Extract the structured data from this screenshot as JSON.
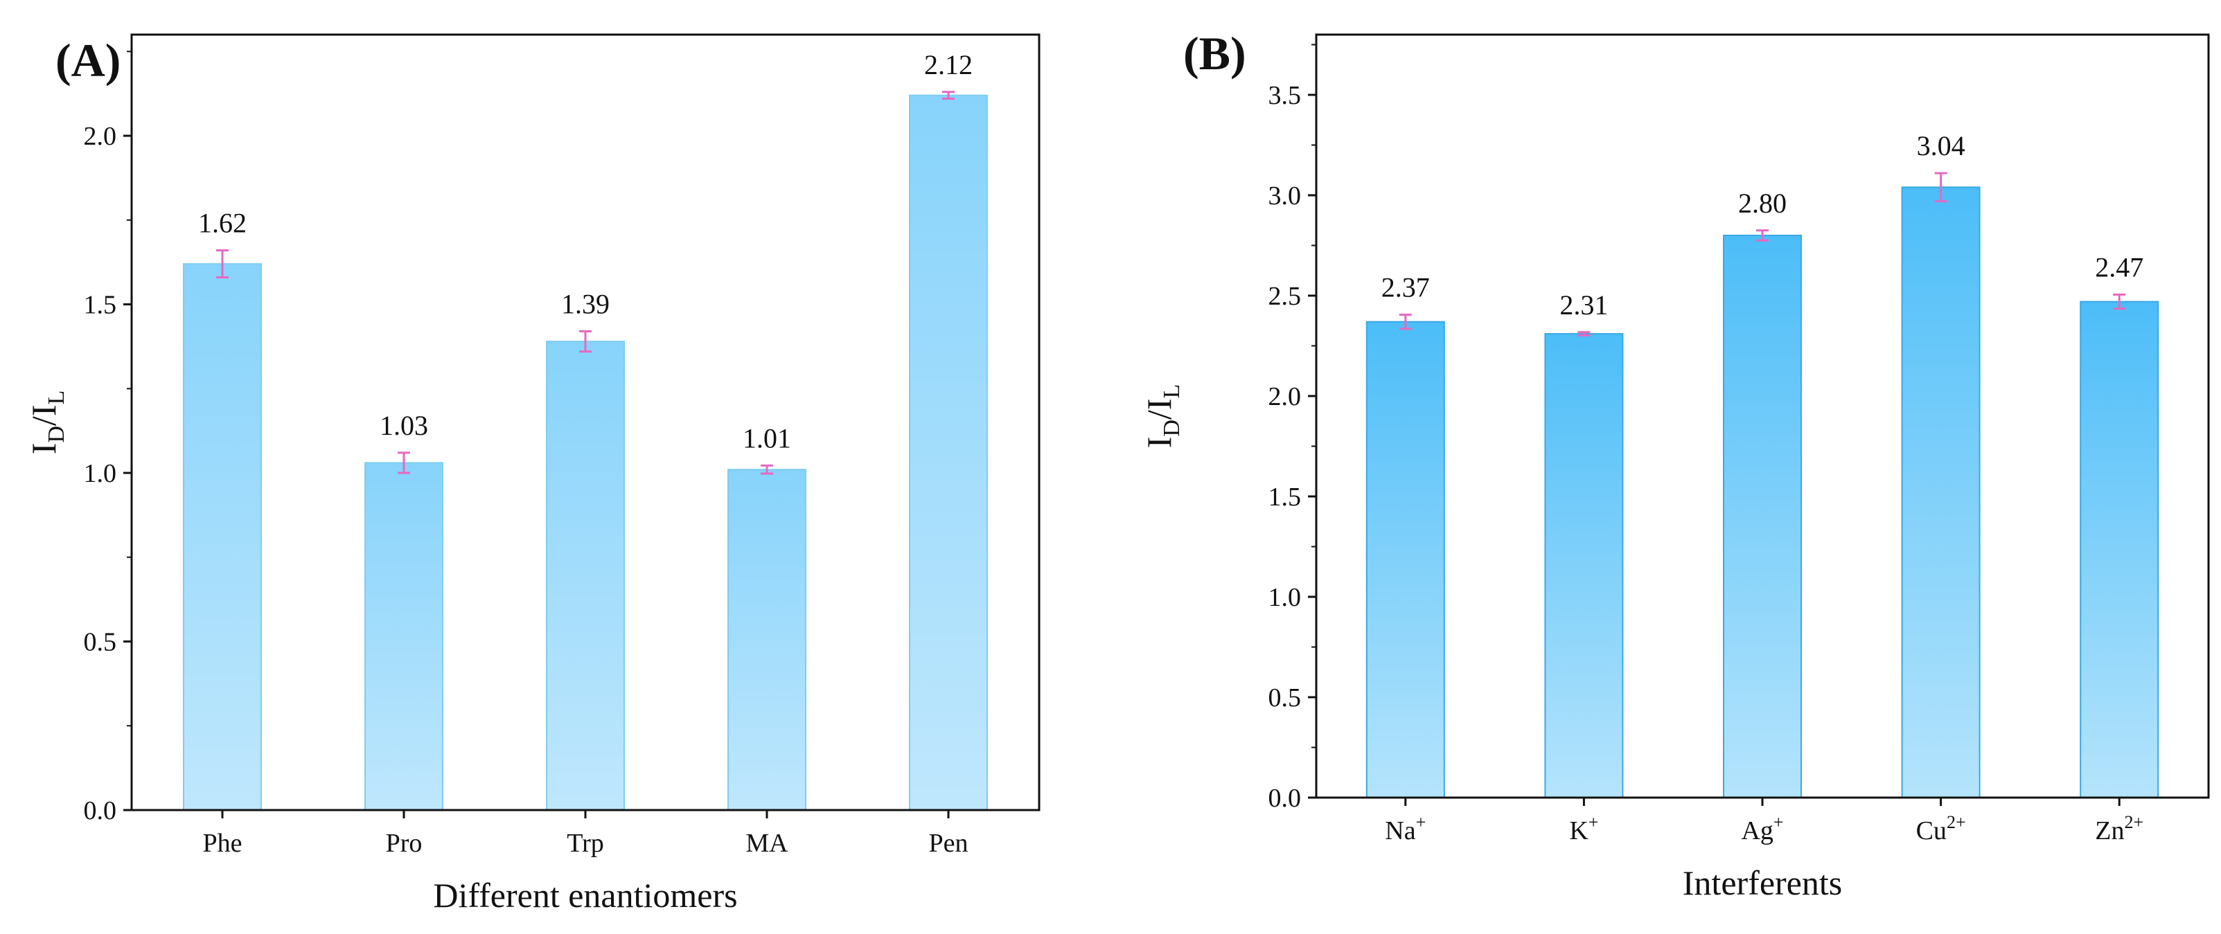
{
  "chart_data": [
    {
      "type": "bar",
      "panel_label": "(A)",
      "title": "",
      "xlabel": "Different enantiomers",
      "ylabel": {
        "main": "I",
        "sub1": "D",
        "sep": "/I",
        "sub2": "L"
      },
      "ylim": [
        0,
        2.3
      ],
      "yticks": [
        "0.0",
        "0.5",
        "1.0",
        "1.5",
        "2.0"
      ],
      "grid": false,
      "categories": [
        {
          "base": "Phe",
          "sup": ""
        },
        {
          "base": "Pro",
          "sup": ""
        },
        {
          "base": "Trp",
          "sup": ""
        },
        {
          "base": "MA",
          "sup": ""
        },
        {
          "base": "Pen",
          "sup": ""
        }
      ],
      "values": [
        1.62,
        1.03,
        1.39,
        1.01,
        2.12
      ],
      "errors": [
        0.04,
        0.03,
        0.03,
        0.012,
        0.01
      ],
      "labels": [
        "1.62",
        "1.03",
        "1.39",
        "1.01",
        "2.12"
      ],
      "colors": {
        "top": "#87d3fb",
        "bottom": "#bfe7fd",
        "edge": "#7fcdf0",
        "error": "#e569bf"
      }
    },
    {
      "type": "bar",
      "panel_label": "(B)",
      "title": "",
      "xlabel": "Interferents",
      "ylabel": {
        "main": "I",
        "sub1": "D",
        "sep": "/I",
        "sub2": "L"
      },
      "ylim": [
        0,
        3.8
      ],
      "yticks": [
        "0.0",
        "0.5",
        "1.0",
        "1.5",
        "2.0",
        "2.5",
        "3.0",
        "3.5"
      ],
      "grid": false,
      "categories": [
        {
          "base": "Na",
          "sup": "+"
        },
        {
          "base": "K",
          "sup": "+"
        },
        {
          "base": "Ag",
          "sup": "+"
        },
        {
          "base": "Cu",
          "sup": "2+"
        },
        {
          "base": "Zn",
          "sup": "2+"
        }
      ],
      "values": [
        2.37,
        2.31,
        2.8,
        3.04,
        2.47
      ],
      "errors": [
        0.035,
        0.008,
        0.025,
        0.07,
        0.035
      ],
      "labels": [
        "2.37",
        "2.31",
        "2.80",
        "3.04",
        "2.47"
      ],
      "colors": {
        "top": "#4cbdf8",
        "bottom": "#b5e4fc",
        "edge": "#39a9e4",
        "error": "#e569bf"
      }
    }
  ]
}
